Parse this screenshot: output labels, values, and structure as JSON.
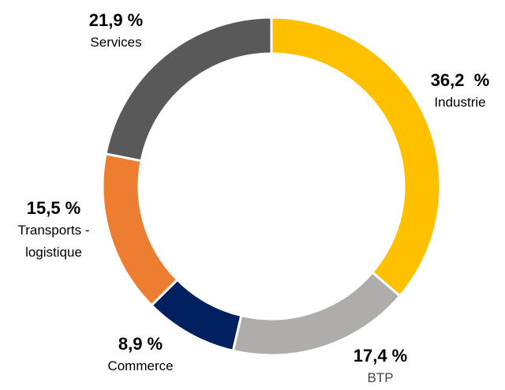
{
  "chart_data": {
    "type": "donut",
    "categories": [
      "Industrie",
      "BTP",
      "Commerce",
      "Transports - logistique",
      "Services"
    ],
    "values": [
      36.2,
      17.4,
      8.9,
      15.5,
      21.9
    ],
    "value_labels": [
      "36,2  %",
      "17,4 %",
      "8,9 %",
      "15,5 %",
      "21,9 %"
    ],
    "colors": [
      "#FFC000",
      "#AFACAC",
      "#002060",
      "#ED7D31",
      "#595959"
    ]
  }
}
